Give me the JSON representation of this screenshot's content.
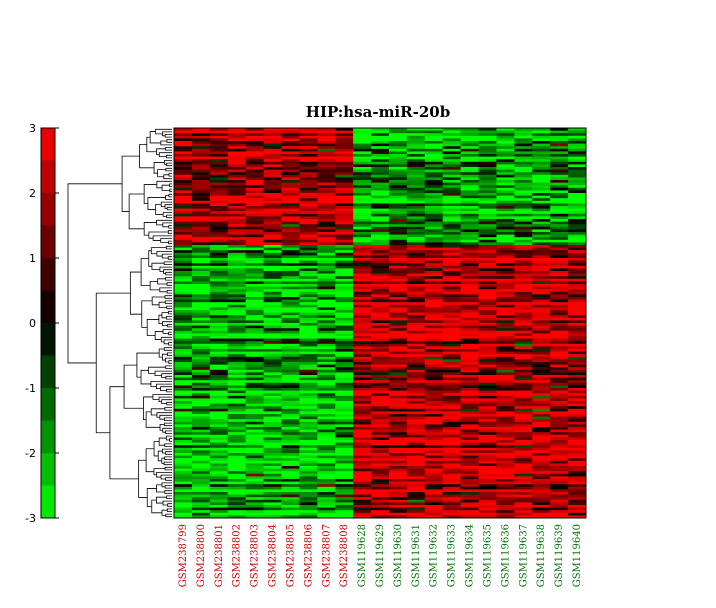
{
  "chart_data": {
    "type": "heatmap",
    "title": "HIP:hsa-miR-20b",
    "columns": [
      {
        "label": "GSM238799",
        "group": "red"
      },
      {
        "label": "GSM238800",
        "group": "red"
      },
      {
        "label": "GSM238801",
        "group": "red"
      },
      {
        "label": "GSM238802",
        "group": "red"
      },
      {
        "label": "GSM238803",
        "group": "red"
      },
      {
        "label": "GSM238804",
        "group": "red"
      },
      {
        "label": "GSM238805",
        "group": "red"
      },
      {
        "label": "GSM238806",
        "group": "red"
      },
      {
        "label": "GSM238807",
        "group": "red"
      },
      {
        "label": "GSM238808",
        "group": "red"
      },
      {
        "label": "GSM119628",
        "group": "green"
      },
      {
        "label": "GSM119629",
        "group": "green"
      },
      {
        "label": "GSM119630",
        "group": "green"
      },
      {
        "label": "GSM119631",
        "group": "green"
      },
      {
        "label": "GSM119632",
        "group": "green"
      },
      {
        "label": "GSM119633",
        "group": "green"
      },
      {
        "label": "GSM119634",
        "group": "green"
      },
      {
        "label": "GSM119635",
        "group": "green"
      },
      {
        "label": "GSM119636",
        "group": "green"
      },
      {
        "label": "GSM119637",
        "group": "green"
      },
      {
        "label": "GSM119638",
        "group": "green"
      },
      {
        "label": "GSM119639",
        "group": "green"
      },
      {
        "label": "GSM119640",
        "group": "green"
      }
    ],
    "colorbar": {
      "range": [
        -3,
        3
      ],
      "ticks": [
        "3",
        "2",
        "1",
        "0",
        "-1",
        "-2",
        "-3"
      ],
      "colors": [
        "#ff0000",
        "#000000",
        "#00ff00"
      ]
    },
    "row_count": 150,
    "row_blocks": [
      {
        "rows": 45,
        "pattern": "first 10 columns high (red), last 13 columns low (green)"
      },
      {
        "rows": 105,
        "pattern": "first 10 columns low (green), last 13 columns high (red)"
      }
    ],
    "legend_colors": {
      "red_group": "#cc0000",
      "green_group": "#007700"
    }
  }
}
